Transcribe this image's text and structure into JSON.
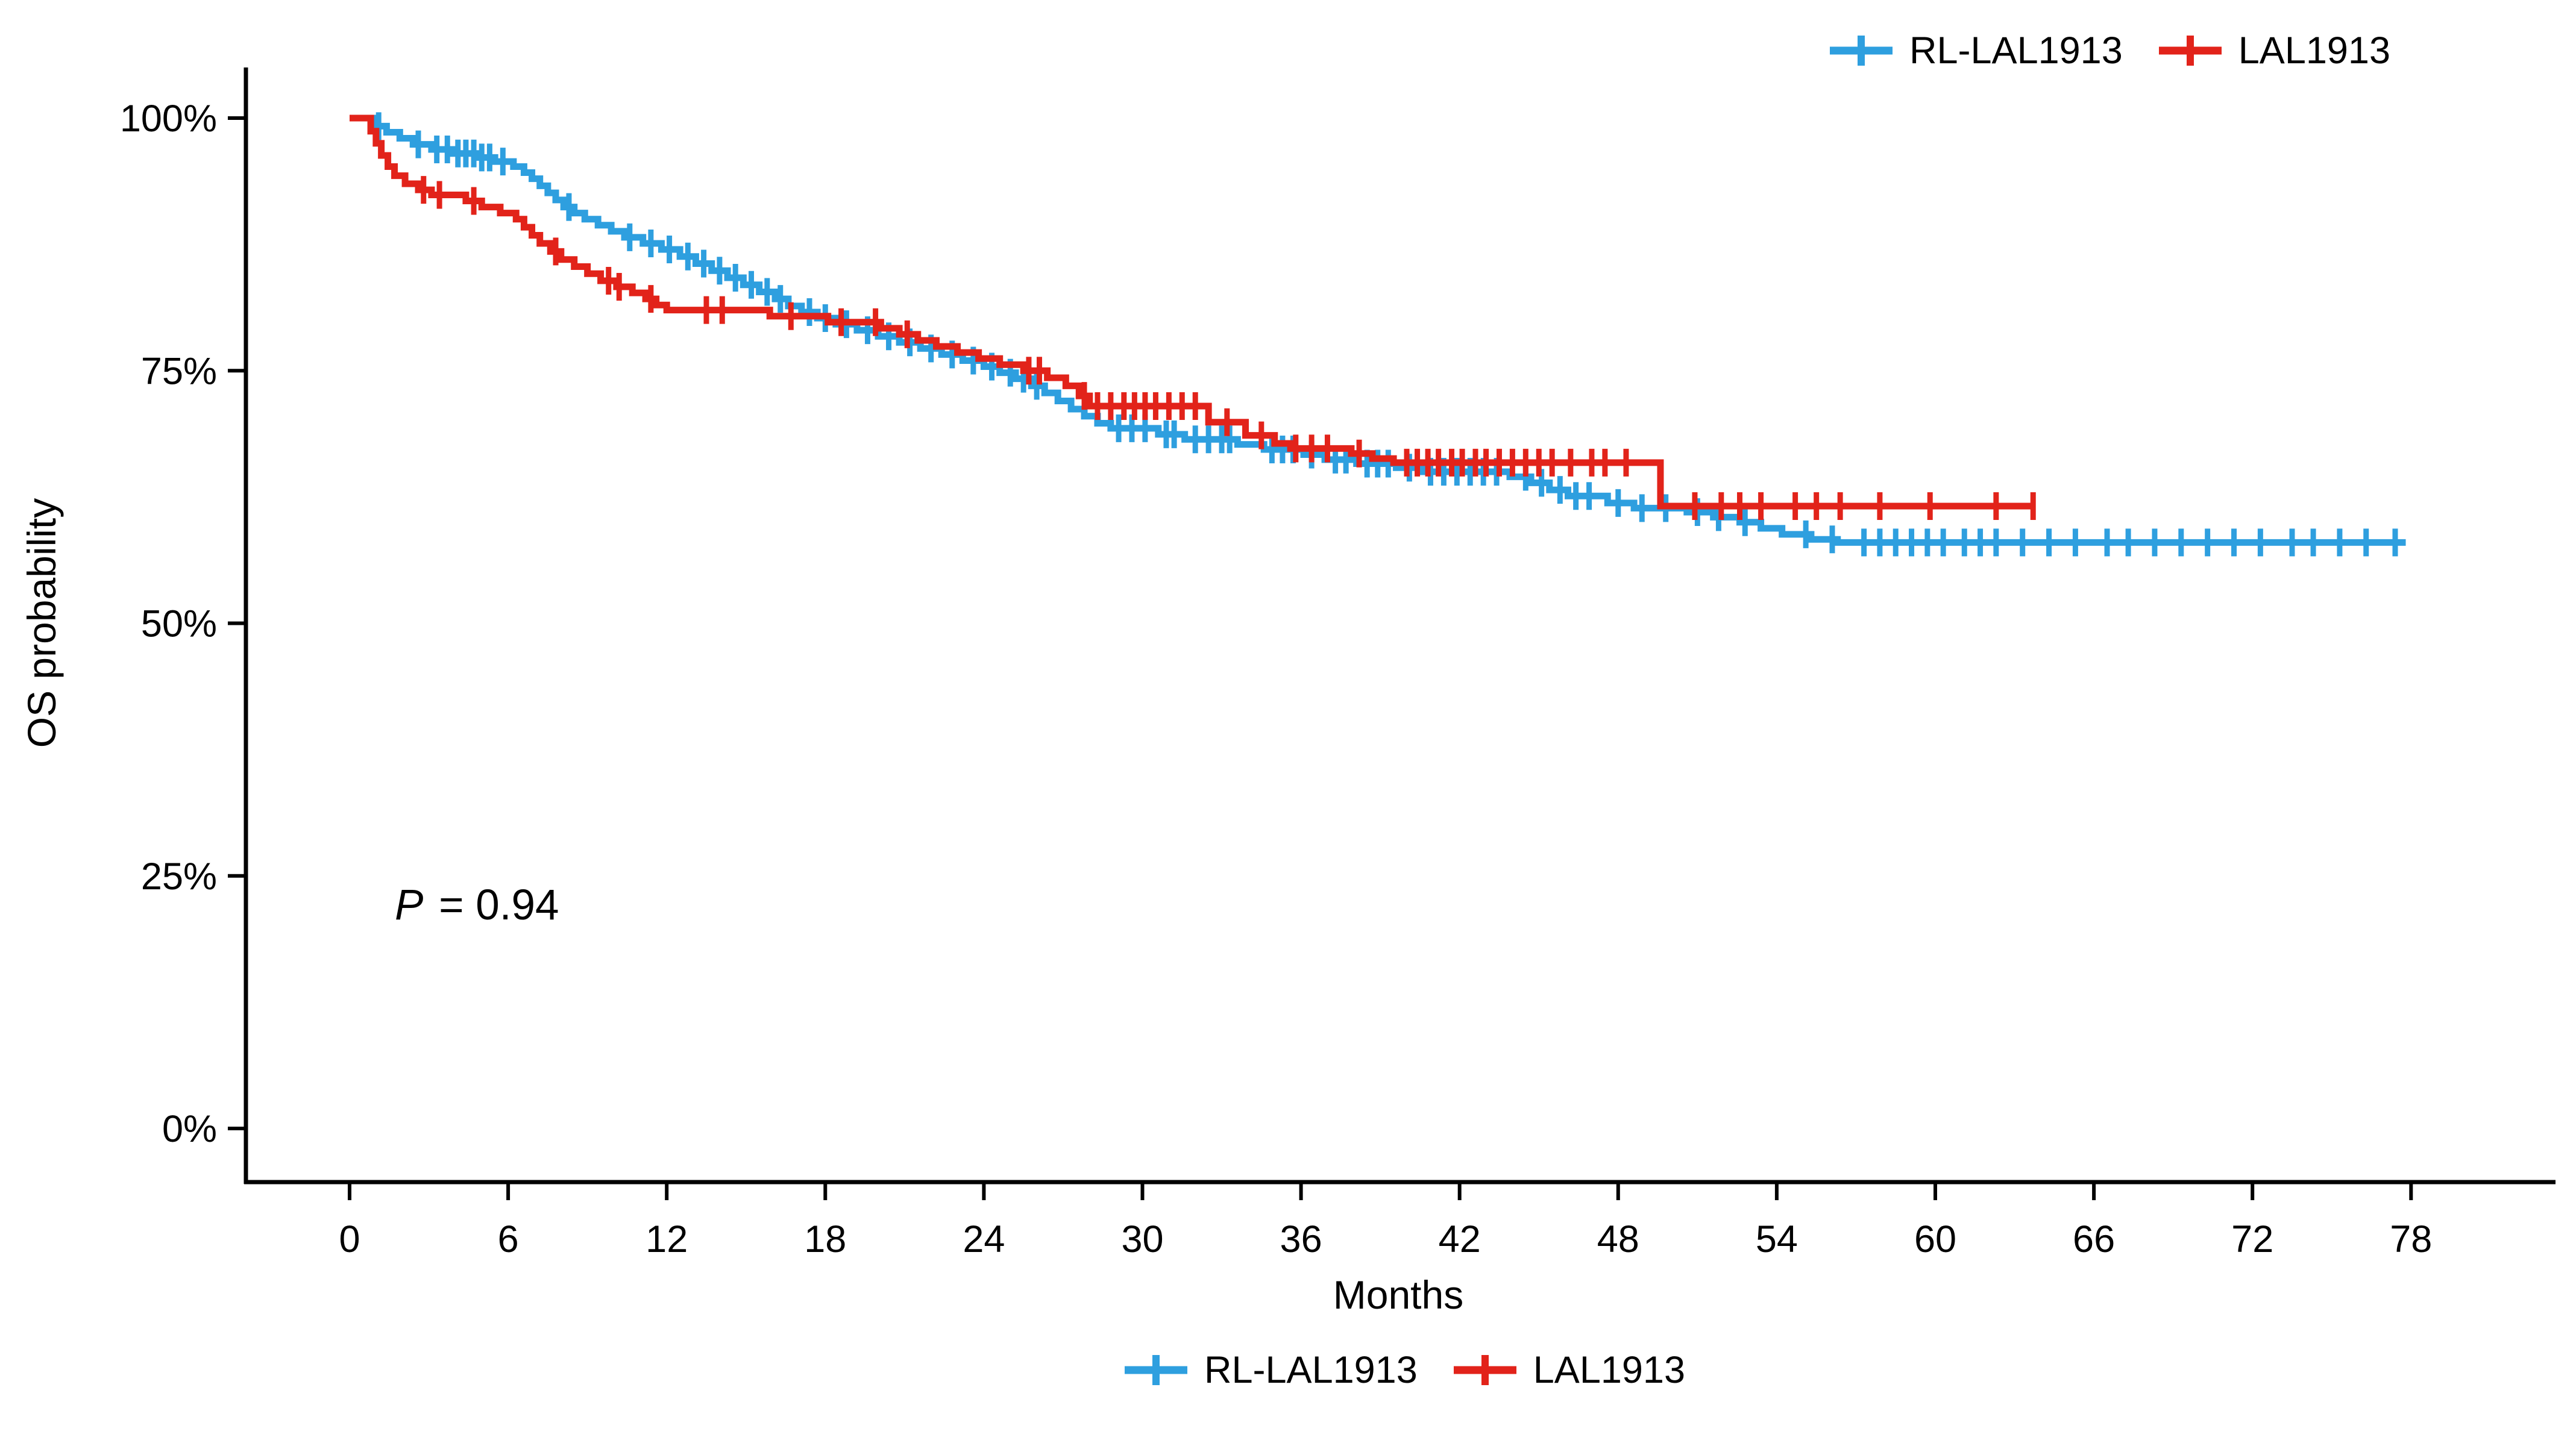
{
  "page": {
    "background": "#FFFFFF",
    "text_color": "#000000"
  },
  "chart_data": {
    "type": "line",
    "variant": "kaplan-meier-step",
    "title": "",
    "xlabel": "Months",
    "ylabel": "OS probability",
    "p_annotation": {
      "label": "P",
      "value": " = 0.94"
    },
    "x_ticks": [
      0,
      6,
      12,
      18,
      24,
      30,
      36,
      42,
      48,
      54,
      60,
      66,
      72,
      78
    ],
    "y_ticks": [
      {
        "value": 0,
        "label": "0%"
      },
      {
        "value": 25,
        "label": "25%"
      },
      {
        "value": 50,
        "label": "50%"
      },
      {
        "value": 75,
        "label": "75%"
      },
      {
        "value": 100,
        "label": "100%"
      }
    ],
    "xlim": [
      0,
      78
    ],
    "ylim": [
      0,
      100
    ],
    "grid": false,
    "legend_positions": [
      "top-right",
      "bottom-center"
    ],
    "series": [
      {
        "name": "RL-LAL1913",
        "color": "#2E9FDF",
        "points": [
          [
            0,
            100
          ],
          [
            0.9,
            99.2
          ],
          [
            1.4,
            98.6
          ],
          [
            1.9,
            98.0
          ],
          [
            2.4,
            97.4
          ],
          [
            3.1,
            96.9
          ],
          [
            3.9,
            96.5
          ],
          [
            4.8,
            96.1
          ],
          [
            5.5,
            95.7
          ],
          [
            6.2,
            95.2
          ],
          [
            6.6,
            94.6
          ],
          [
            6.9,
            94.0
          ],
          [
            7.2,
            93.3
          ],
          [
            7.5,
            92.6
          ],
          [
            7.8,
            91.9
          ],
          [
            8.1,
            91.2
          ],
          [
            8.5,
            90.6
          ],
          [
            8.9,
            90.0
          ],
          [
            9.4,
            89.4
          ],
          [
            9.9,
            88.8
          ],
          [
            10.4,
            88.2
          ],
          [
            11.1,
            87.6
          ],
          [
            11.8,
            87.0
          ],
          [
            12.5,
            86.3
          ],
          [
            13.1,
            85.6
          ],
          [
            13.7,
            84.9
          ],
          [
            14.3,
            84.2
          ],
          [
            14.9,
            83.5
          ],
          [
            15.5,
            82.8
          ],
          [
            16.1,
            82.1
          ],
          [
            16.6,
            81.4
          ],
          [
            17.1,
            80.8
          ],
          [
            17.7,
            80.2
          ],
          [
            18.4,
            79.6
          ],
          [
            19.2,
            79.0
          ],
          [
            20.0,
            78.4
          ],
          [
            20.8,
            77.8
          ],
          [
            21.6,
            77.2
          ],
          [
            22.4,
            76.6
          ],
          [
            23.2,
            76.0
          ],
          [
            24.0,
            75.4
          ],
          [
            24.6,
            74.8
          ],
          [
            25.2,
            74.2
          ],
          [
            25.8,
            73.5
          ],
          [
            26.3,
            72.8
          ],
          [
            26.8,
            72.0
          ],
          [
            27.3,
            71.2
          ],
          [
            27.8,
            70.5
          ],
          [
            28.3,
            69.8
          ],
          [
            28.8,
            69.3
          ],
          [
            30.6,
            68.7
          ],
          [
            31.6,
            68.2
          ],
          [
            33.6,
            67.7
          ],
          [
            34.6,
            67.2
          ],
          [
            36.1,
            66.7
          ],
          [
            36.9,
            66.2
          ],
          [
            38.1,
            65.8
          ],
          [
            39.6,
            65.4
          ],
          [
            40.6,
            65.0
          ],
          [
            43.9,
            64.5
          ],
          [
            44.7,
            63.9
          ],
          [
            45.4,
            63.2
          ],
          [
            46.1,
            62.6
          ],
          [
            47.6,
            61.9
          ],
          [
            48.6,
            61.4
          ],
          [
            50.6,
            61.0
          ],
          [
            51.6,
            60.5
          ],
          [
            52.6,
            60.0
          ],
          [
            53.4,
            59.4
          ],
          [
            54.2,
            58.8
          ],
          [
            55.3,
            58.3
          ],
          [
            56.3,
            58.0
          ],
          [
            77.8,
            58.0
          ]
        ],
        "censor_times": [
          1.1,
          2.6,
          3.3,
          3.7,
          4.1,
          4.4,
          4.7,
          5.0,
          5.3,
          5.8,
          8.3,
          10.6,
          11.4,
          12.1,
          12.8,
          13.4,
          14.0,
          14.6,
          15.2,
          15.8,
          16.3,
          17.4,
          18.0,
          18.8,
          19.6,
          20.4,
          21.2,
          22.0,
          22.8,
          23.6,
          24.3,
          25.0,
          25.5,
          26.0,
          29.1,
          29.6,
          30.1,
          30.9,
          31.2,
          32.0,
          32.5,
          33.0,
          33.3,
          34.9,
          35.3,
          35.7,
          36.4,
          37.3,
          37.7,
          38.5,
          38.9,
          39.3,
          40.1,
          40.9,
          41.4,
          41.9,
          42.4,
          42.9,
          43.4,
          44.5,
          45.1,
          45.8,
          46.4,
          46.9,
          48.0,
          48.9,
          49.8,
          51.0,
          51.8,
          52.8,
          55.1,
          56.1,
          57.3,
          57.9,
          58.5,
          59.1,
          59.7,
          60.3,
          61.1,
          61.7,
          62.3,
          63.3,
          64.3,
          65.3,
          66.5,
          67.3,
          68.3,
          69.3,
          70.3,
          71.3,
          72.3,
          73.5,
          74.3,
          75.3,
          76.3,
          77.4
        ]
      },
      {
        "name": "LAL1913",
        "color": "#E2231A",
        "points": [
          [
            0,
            100
          ],
          [
            0.8,
            98.7
          ],
          [
            1.0,
            97.5
          ],
          [
            1.2,
            96.3
          ],
          [
            1.45,
            95.2
          ],
          [
            1.7,
            94.3
          ],
          [
            2.1,
            93.5
          ],
          [
            2.6,
            92.9
          ],
          [
            3.1,
            92.4
          ],
          [
            4.4,
            91.8
          ],
          [
            5.0,
            91.2
          ],
          [
            5.7,
            90.6
          ],
          [
            6.3,
            90.0
          ],
          [
            6.6,
            89.2
          ],
          [
            6.9,
            88.4
          ],
          [
            7.2,
            87.6
          ],
          [
            7.6,
            86.8
          ],
          [
            8.0,
            86.0
          ],
          [
            8.5,
            85.3
          ],
          [
            9.0,
            84.6
          ],
          [
            9.5,
            83.9
          ],
          [
            10.1,
            83.3
          ],
          [
            10.7,
            82.7
          ],
          [
            11.2,
            82.1
          ],
          [
            11.6,
            81.5
          ],
          [
            12.0,
            81.0
          ],
          [
            15.9,
            80.4
          ],
          [
            18.1,
            79.8
          ],
          [
            20.1,
            79.2
          ],
          [
            20.8,
            78.6
          ],
          [
            21.5,
            78.0
          ],
          [
            22.2,
            77.4
          ],
          [
            23.0,
            76.8
          ],
          [
            23.8,
            76.2
          ],
          [
            24.6,
            75.6
          ],
          [
            25.5,
            75.0
          ],
          [
            26.4,
            74.3
          ],
          [
            27.1,
            73.5
          ],
          [
            27.6,
            72.5
          ],
          [
            28.0,
            71.5
          ],
          [
            32.5,
            69.9
          ],
          [
            33.9,
            68.6
          ],
          [
            35.0,
            67.8
          ],
          [
            35.6,
            67.3
          ],
          [
            37.9,
            66.8
          ],
          [
            38.7,
            66.3
          ],
          [
            39.5,
            65.9
          ],
          [
            49.6,
            61.6
          ],
          [
            63.7,
            61.6
          ]
        ],
        "censor_times": [
          2.8,
          3.4,
          4.7,
          7.8,
          9.8,
          10.2,
          11.4,
          13.5,
          14.1,
          16.7,
          18.6,
          19.9,
          21.1,
          25.7,
          26.1,
          27.8,
          28.3,
          28.8,
          29.3,
          29.7,
          30.1,
          30.5,
          31.0,
          31.5,
          32.0,
          33.2,
          34.5,
          35.8,
          36.4,
          37.0,
          38.2,
          40.0,
          40.4,
          40.8,
          41.2,
          41.7,
          42.1,
          42.6,
          43.0,
          43.5,
          44.0,
          44.5,
          45.0,
          45.5,
          46.2,
          47.0,
          47.5,
          48.3,
          50.9,
          51.9,
          52.6,
          53.4,
          54.7,
          55.5,
          56.4,
          57.9,
          59.8,
          62.3,
          63.7
        ]
      }
    ]
  }
}
